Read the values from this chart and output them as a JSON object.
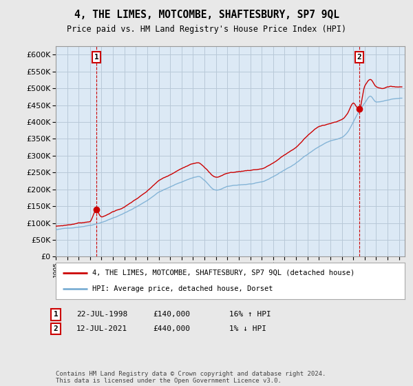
{
  "title": "4, THE LIMES, MOTCOMBE, SHAFTESBURY, SP7 9QL",
  "subtitle": "Price paid vs. HM Land Registry's House Price Index (HPI)",
  "legend_line1": "4, THE LIMES, MOTCOMBE, SHAFTESBURY, SP7 9QL (detached house)",
  "legend_line2": "HPI: Average price, detached house, Dorset",
  "footnote": "Contains HM Land Registry data © Crown copyright and database right 2024.\nThis data is licensed under the Open Government Licence v3.0.",
  "table_rows": [
    {
      "num": "1",
      "date": "22-JUL-1998",
      "price": "£140,000",
      "hpi": "16% ↑ HPI"
    },
    {
      "num": "2",
      "date": "12-JUL-2021",
      "price": "£440,000",
      "hpi": "1% ↓ HPI"
    }
  ],
  "sale_color": "#cc0000",
  "hpi_color": "#7bafd4",
  "ylim": [
    0,
    625000
  ],
  "yticks": [
    0,
    50000,
    100000,
    150000,
    200000,
    250000,
    300000,
    350000,
    400000,
    450000,
    500000,
    550000,
    600000
  ],
  "sale1_year": 1998.55,
  "sale1_price": 140000,
  "sale2_year": 2021.53,
  "sale2_price": 440000,
  "background_color": "#e8e8e8",
  "plot_bg_color": "#dce9f5",
  "grid_color": "#b8c8d8",
  "xmin": 1995,
  "xmax": 2025.5
}
